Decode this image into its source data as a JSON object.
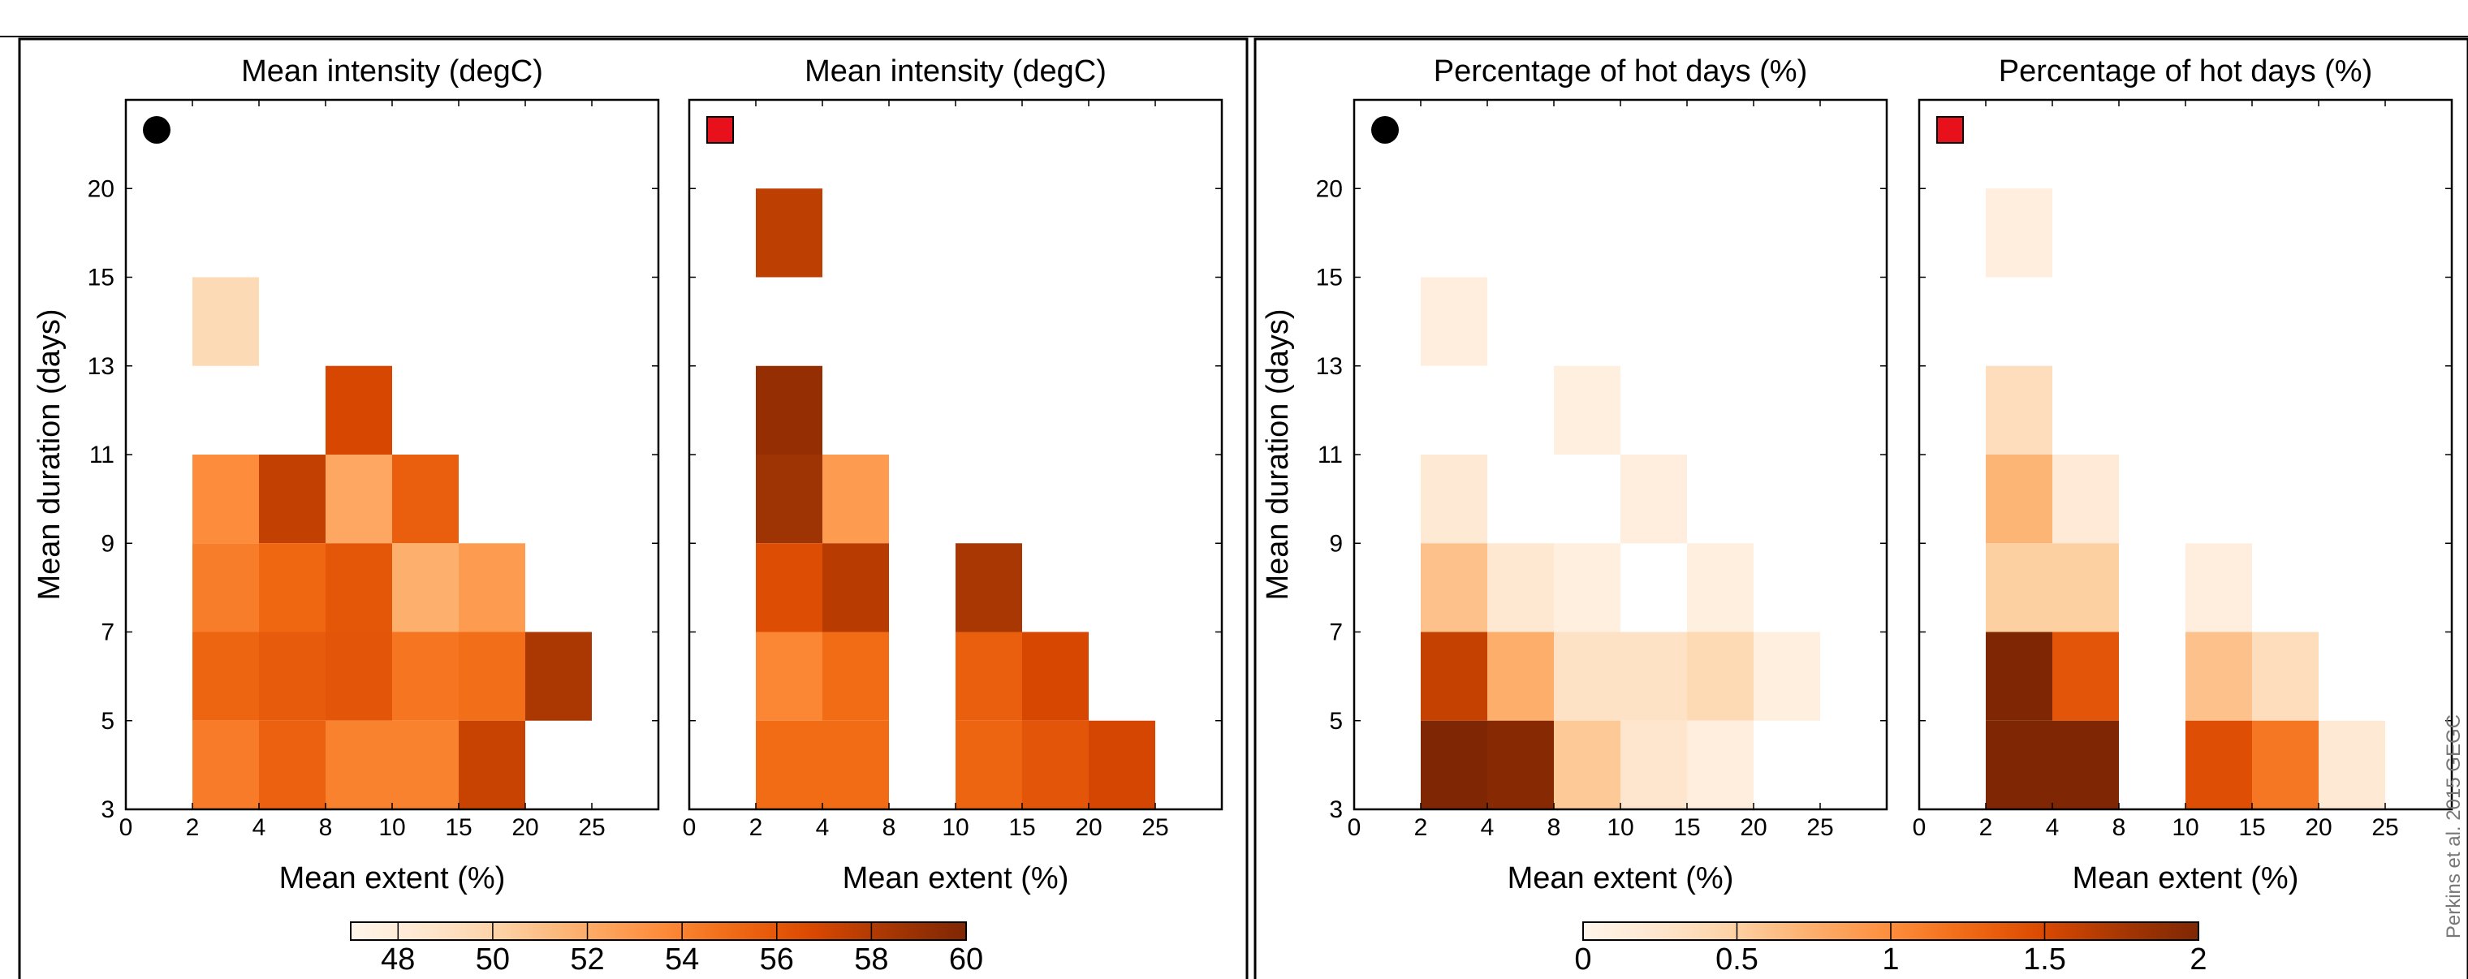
{
  "figure": {
    "credit": "Perkins et al. 2015 GEGC"
  },
  "x_tick_labels": [
    "0",
    "2",
    "4",
    "8",
    "10",
    "15",
    "20",
    "25"
  ],
  "y_tick_labels": [
    "3",
    "5",
    "7",
    "9",
    "11",
    "13",
    "15",
    "20"
  ],
  "chart_data": [
    {
      "type": "heatmap",
      "id": "intensity-circle",
      "title": "Mean intensity (degC)",
      "xlabel": "Mean extent (%)",
      "ylabel": "Mean duration (days)",
      "marker": "circle",
      "colorscale": "intensity",
      "cells": [
        {
          "x": "2-4",
          "y": "13-15",
          "value": 49.5
        },
        {
          "x": "8-10",
          "y": "11-13",
          "value": 56.8
        },
        {
          "x": "2-4",
          "y": "9-11",
          "value": 53.5
        },
        {
          "x": "4-8",
          "y": "9-11",
          "value": 57.5
        },
        {
          "x": "8-10",
          "y": "9-11",
          "value": 52.2
        },
        {
          "x": "10-15",
          "y": "9-11",
          "value": 55.6
        },
        {
          "x": "2-4",
          "y": "7-9",
          "value": 54.2
        },
        {
          "x": "4-8",
          "y": "7-9",
          "value": 55.2
        },
        {
          "x": "8-10",
          "y": "7-9",
          "value": 56.0
        },
        {
          "x": "10-15",
          "y": "7-9",
          "value": 51.8
        },
        {
          "x": "15-20",
          "y": "7-9",
          "value": 52.8
        },
        {
          "x": "2-4",
          "y": "5-7",
          "value": 55.3
        },
        {
          "x": "4-8",
          "y": "5-7",
          "value": 55.8
        },
        {
          "x": "8-10",
          "y": "5-7",
          "value": 56.1
        },
        {
          "x": "10-15",
          "y": "5-7",
          "value": 54.6
        },
        {
          "x": "15-20",
          "y": "5-7",
          "value": 54.9
        },
        {
          "x": "20-25",
          "y": "5-7",
          "value": 58.2
        },
        {
          "x": "2-4",
          "y": "3-5",
          "value": 54.3
        },
        {
          "x": "4-8",
          "y": "3-5",
          "value": 55.5
        },
        {
          "x": "8-10",
          "y": "3-5",
          "value": 54.0
        },
        {
          "x": "10-15",
          "y": "3-5",
          "value": 54.0
        },
        {
          "x": "15-20",
          "y": "3-5",
          "value": 57.3
        }
      ]
    },
    {
      "type": "heatmap",
      "id": "intensity-square",
      "title": "Mean intensity (degC)",
      "xlabel": "Mean extent (%)",
      "ylabel": "",
      "marker": "square",
      "colorscale": "intensity",
      "cells": [
        {
          "x": "2-4",
          "y": "15-20",
          "value": 57.6
        },
        {
          "x": "2-4",
          "y": "11-13",
          "value": 59.1
        },
        {
          "x": "2-4",
          "y": "9-11",
          "value": 58.7
        },
        {
          "x": "4-8",
          "y": "9-11",
          "value": 52.8
        },
        {
          "x": "2-4",
          "y": "7-9",
          "value": 56.5
        },
        {
          "x": "4-8",
          "y": "7-9",
          "value": 57.8
        },
        {
          "x": "10-15",
          "y": "7-9",
          "value": 58.3
        },
        {
          "x": "2-4",
          "y": "5-7",
          "value": 53.8
        },
        {
          "x": "4-8",
          "y": "5-7",
          "value": 55.0
        },
        {
          "x": "10-15",
          "y": "5-7",
          "value": 55.6
        },
        {
          "x": "15-20",
          "y": "5-7",
          "value": 56.8
        },
        {
          "x": "2-4",
          "y": "3-5",
          "value": 55.0
        },
        {
          "x": "4-8",
          "y": "3-5",
          "value": 55.0
        },
        {
          "x": "10-15",
          "y": "3-5",
          "value": 55.3
        },
        {
          "x": "15-20",
          "y": "3-5",
          "value": 56.1
        },
        {
          "x": "20-25",
          "y": "3-5",
          "value": 56.9
        }
      ]
    },
    {
      "type": "heatmap",
      "id": "hotdays-circle",
      "title": "Percentage of hot days (%)",
      "xlabel": "Mean extent (%)",
      "ylabel": "Mean duration (days)",
      "marker": "circle",
      "colorscale": "hotdays",
      "cells": [
        {
          "x": "2-4",
          "y": "13-15",
          "value": 0.12
        },
        {
          "x": "8-10",
          "y": "11-13",
          "value": 0.1
        },
        {
          "x": "2-4",
          "y": "9-11",
          "value": 0.2
        },
        {
          "x": "10-15",
          "y": "9-11",
          "value": 0.12
        },
        {
          "x": "2-4",
          "y": "7-9",
          "value": 0.6
        },
        {
          "x": "4-8",
          "y": "7-9",
          "value": 0.22
        },
        {
          "x": "8-10",
          "y": "7-9",
          "value": 0.1
        },
        {
          "x": "15-20",
          "y": "7-9",
          "value": 0.1
        },
        {
          "x": "2-4",
          "y": "5-7",
          "value": 1.6
        },
        {
          "x": "4-8",
          "y": "5-7",
          "value": 0.75
        },
        {
          "x": "8-10",
          "y": "5-7",
          "value": 0.3
        },
        {
          "x": "10-15",
          "y": "5-7",
          "value": 0.3
        },
        {
          "x": "15-20",
          "y": "5-7",
          "value": 0.4
        },
        {
          "x": "20-25",
          "y": "5-7",
          "value": 0.1
        },
        {
          "x": "2-4",
          "y": "3-5",
          "value": 2.0
        },
        {
          "x": "4-8",
          "y": "3-5",
          "value": 1.95
        },
        {
          "x": "8-10",
          "y": "3-5",
          "value": 0.55
        },
        {
          "x": "10-15",
          "y": "3-5",
          "value": 0.25
        },
        {
          "x": "15-20",
          "y": "3-5",
          "value": 0.12
        }
      ]
    },
    {
      "type": "heatmap",
      "id": "hotdays-square",
      "title": "Percentage of hot days (%)",
      "xlabel": "Mean extent (%)",
      "ylabel": "",
      "marker": "square",
      "colorscale": "hotdays",
      "cells": [
        {
          "x": "2-4",
          "y": "15-20",
          "value": 0.12
        },
        {
          "x": "2-4",
          "y": "11-13",
          "value": 0.35
        },
        {
          "x": "2-4",
          "y": "9-11",
          "value": 0.7
        },
        {
          "x": "4-8",
          "y": "9-11",
          "value": 0.18
        },
        {
          "x": "2-4",
          "y": "7-9",
          "value": 0.5
        },
        {
          "x": "4-8",
          "y": "7-9",
          "value": 0.5
        },
        {
          "x": "10-15",
          "y": "7-9",
          "value": 0.12
        },
        {
          "x": "2-4",
          "y": "5-7",
          "value": 2.0
        },
        {
          "x": "4-8",
          "y": "5-7",
          "value": 1.4
        },
        {
          "x": "10-15",
          "y": "5-7",
          "value": 0.6
        },
        {
          "x": "15-20",
          "y": "5-7",
          "value": 0.35
        },
        {
          "x": "2-4",
          "y": "3-5",
          "value": 2.0
        },
        {
          "x": "4-8",
          "y": "3-5",
          "value": 2.0
        },
        {
          "x": "10-15",
          "y": "3-5",
          "value": 1.45
        },
        {
          "x": "15-20",
          "y": "3-5",
          "value": 1.15
        },
        {
          "x": "20-25",
          "y": "3-5",
          "value": 0.2
        }
      ]
    }
  ],
  "colorbars": {
    "intensity": {
      "min": 47,
      "max": 60,
      "tick_values": [
        48,
        50,
        52,
        54,
        56,
        58,
        60
      ],
      "tick_labels": [
        "48",
        "50",
        "52",
        "54",
        "56",
        "58",
        "60"
      ]
    },
    "hotdays": {
      "min": 0,
      "max": 2,
      "tick_values": [
        0,
        0.5,
        1,
        1.5,
        2
      ],
      "tick_labels": [
        "0",
        "0.5",
        "1",
        "1.5",
        "2"
      ]
    }
  },
  "colors": {
    "marker_circle": "#000000",
    "marker_square": "#e8101a",
    "ramp": [
      "#fff5eb",
      "#fee6ce",
      "#fdd0a2",
      "#fdae6b",
      "#fd8d3c",
      "#f16913",
      "#d94801",
      "#a63603",
      "#7f2704"
    ]
  }
}
